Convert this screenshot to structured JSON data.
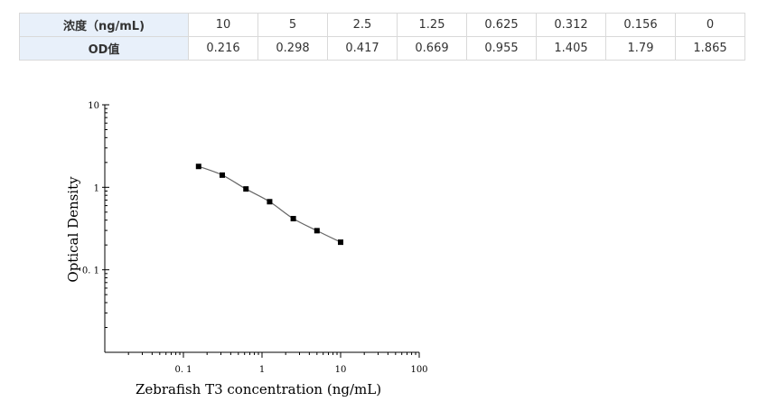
{
  "table": {
    "row_headers": [
      "浓度（ng/mL)",
      "OD值"
    ],
    "concentrations": [
      "10",
      "5",
      "2.5",
      "1.25",
      "0.625",
      "0.312",
      "0.156",
      "0"
    ],
    "od_values": [
      "0.216",
      "0.298",
      "0.417",
      "0.669",
      "0.955",
      "1.405",
      "1.79",
      "1.865"
    ]
  },
  "chart_data": {
    "type": "scatter",
    "scale": "log-log",
    "title": "",
    "xlabel": "Zebrafish T3 concentration (ng/mL)",
    "ylabel": "Optical Density",
    "xlim": [
      0.01,
      100
    ],
    "ylim": [
      0.01,
      10
    ],
    "x_ticks": [
      0.1,
      1,
      10,
      100
    ],
    "x_tick_labels": [
      "0. 1",
      "1",
      "10",
      "100"
    ],
    "y_ticks": [
      0.1,
      1,
      10
    ],
    "y_tick_labels": [
      "0. 1",
      "1",
      "10"
    ],
    "grid": false,
    "series": [
      {
        "x": [
          0.156,
          0.312,
          0.625,
          1.25,
          2.5,
          5,
          10
        ],
        "y": [
          1.79,
          1.405,
          0.955,
          0.669,
          0.417,
          0.298,
          0.216
        ],
        "marker": "square",
        "color": "#000000",
        "fit_line": true,
        "fit_color": "#666666"
      }
    ]
  }
}
